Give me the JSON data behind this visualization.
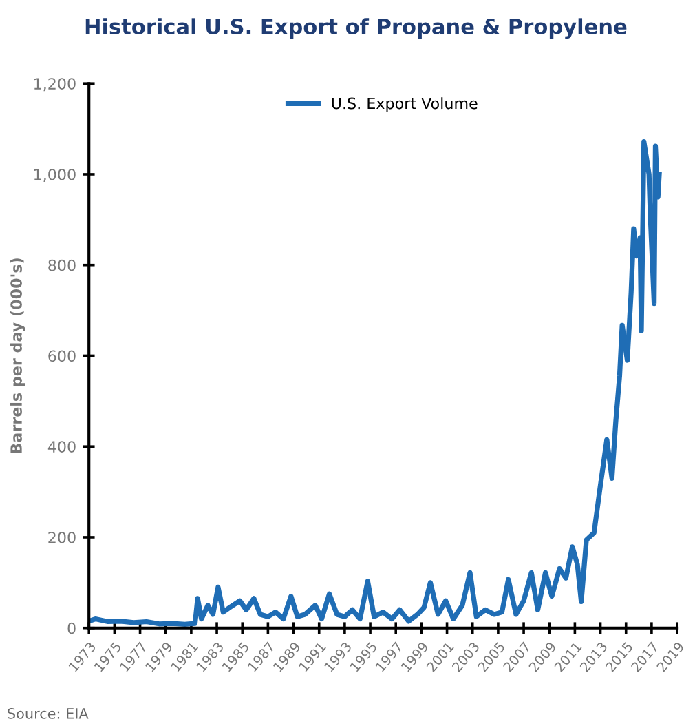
{
  "chart_data": {
    "type": "line",
    "title": "Historical U.S. Export of Propane & Propylene",
    "ylabel": "Barrels per day (000's)",
    "annotations": [
      "Source: EIA"
    ],
    "series": [
      {
        "name": "U.S. Export Volume",
        "color": "#1f6db5",
        "x": [
          1973.0,
          1973.5,
          1974.5,
          1975.5,
          1976.5,
          1977.5,
          1978.5,
          1979.5,
          1980.5,
          1981.3,
          1981.5,
          1981.8,
          1982.3,
          1982.7,
          1983.1,
          1983.5,
          1984.0,
          1984.8,
          1985.3,
          1985.9,
          1986.4,
          1987.0,
          1987.6,
          1988.2,
          1988.8,
          1989.3,
          1989.9,
          1990.7,
          1991.2,
          1991.8,
          1992.4,
          1993.0,
          1993.6,
          1994.2,
          1994.8,
          1995.3,
          1996.0,
          1996.7,
          1997.3,
          1998.0,
          1998.7,
          1999.2,
          1999.7,
          2000.3,
          2000.9,
          2001.5,
          2002.2,
          2002.8,
          2003.3,
          2004.0,
          2004.7,
          2005.3,
          2005.8,
          2006.4,
          2007.0,
          2007.6,
          2008.1,
          2008.7,
          2009.2,
          2009.8,
          2010.3,
          2010.8,
          2011.2,
          2011.5,
          2011.9,
          2012.5,
          2013.0,
          2013.5,
          2013.9,
          2014.2,
          2014.5,
          2014.7,
          2015.1,
          2015.4,
          2015.6,
          2015.8,
          2016.1,
          2016.2,
          2016.4,
          2016.8,
          2016.9,
          2017.2,
          2017.3,
          2017.5,
          2017.6
        ],
        "values": [
          15,
          20,
          14,
          15,
          12,
          14,
          9,
          10,
          8,
          10,
          65,
          20,
          50,
          30,
          90,
          35,
          45,
          60,
          40,
          65,
          30,
          25,
          35,
          20,
          70,
          25,
          30,
          50,
          20,
          75,
          30,
          25,
          40,
          20,
          103,
          25,
          35,
          20,
          40,
          15,
          30,
          45,
          100,
          30,
          60,
          20,
          50,
          122,
          25,
          40,
          30,
          35,
          107,
          30,
          60,
          122,
          40,
          122,
          70,
          131,
          110,
          179,
          140,
          58,
          194,
          210,
          315,
          415,
          330,
          455,
          556,
          667,
          590,
          739,
          880,
          820,
          860,
          655,
          1072,
          1000,
          910,
          715,
          1062,
          950,
          1000
        ]
      }
    ],
    "xlim": [
      1973,
      2019
    ],
    "xticks": [
      1973,
      1975,
      1977,
      1979,
      1981,
      1983,
      1985,
      1987,
      1989,
      1991,
      1993,
      1995,
      1997,
      1999,
      2001,
      2003,
      2005,
      2007,
      2009,
      2011,
      2013,
      2015,
      2017,
      2019
    ],
    "ylim": [
      0,
      1200
    ],
    "yticks": [
      0,
      200,
      400,
      600,
      800,
      {
        "value": 1000,
        "label": "1,000"
      },
      {
        "value": 1200,
        "label": "1,200"
      }
    ],
    "grid": false,
    "legend": "top",
    "line_style": "solid",
    "marker": "none"
  }
}
